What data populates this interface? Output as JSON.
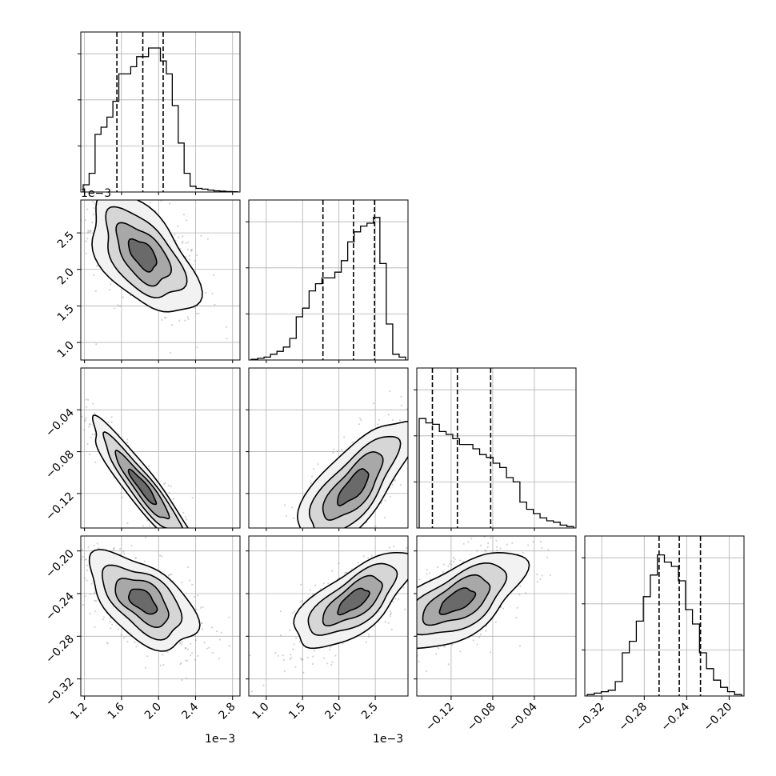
{
  "chart_data": {
    "type": "corner",
    "parameters": [
      {
        "range": [
          1.16,
          2.88
        ],
        "ticks": [
          "1.2",
          "1.6",
          "2.0",
          "2.4",
          "2.8"
        ],
        "tick_values": [
          1.2,
          1.6,
          2.0,
          2.4,
          2.8
        ],
        "offset_text": "1e−3",
        "quantiles": [
          1.55,
          1.83,
          2.05
        ]
      },
      {
        "range": [
          0.76,
          2.95
        ],
        "ticks": [
          "1.0",
          "1.5",
          "2.0",
          "2.5"
        ],
        "tick_values": [
          1.0,
          1.5,
          2.0,
          2.5
        ],
        "offset_text": "1e−3",
        "quantiles": [
          1.78,
          2.2,
          2.49
        ]
      },
      {
        "range": [
          -0.153,
          -0.0
        ],
        "ticks": [
          "−0.12",
          "−0.08",
          "−0.04"
        ],
        "tick_values": [
          -0.12,
          -0.08,
          -0.04
        ],
        "quantiles": [
          -0.138,
          -0.114,
          -0.082
        ]
      },
      {
        "range": [
          -0.336,
          -0.186
        ],
        "ticks": [
          "−0.32",
          "−0.28",
          "−0.24",
          "−0.20"
        ],
        "tick_values": [
          -0.32,
          -0.28,
          -0.24,
          -0.2
        ],
        "quantiles": [
          -0.266,
          -0.247,
          -0.227
        ]
      }
    ],
    "histograms": [
      [
        0.05,
        0.13,
        0.4,
        0.45,
        0.52,
        0.63,
        0.82,
        0.82,
        0.87,
        0.94,
        0.94,
        1.0,
        1.0,
        0.91,
        0.82,
        0.6,
        0.34,
        0.13,
        0.04,
        0.025,
        0.02,
        0.013,
        0.008,
        0.006,
        0.003,
        0.002
      ],
      [
        0.005,
        0.012,
        0.02,
        0.04,
        0.06,
        0.09,
        0.15,
        0.3,
        0.36,
        0.48,
        0.53,
        0.57,
        0.57,
        0.61,
        0.69,
        0.82,
        0.89,
        0.93,
        0.95,
        0.99,
        0.67,
        0.25,
        0.04,
        0.02
      ],
      [
        0.76,
        0.73,
        0.72,
        0.67,
        0.65,
        0.62,
        0.58,
        0.58,
        0.55,
        0.51,
        0.49,
        0.45,
        0.42,
        0.35,
        0.32,
        0.18,
        0.13,
        0.1,
        0.07,
        0.05,
        0.04,
        0.02,
        0.01
      ],
      [
        0.01,
        0.02,
        0.03,
        0.04,
        0.1,
        0.3,
        0.38,
        0.52,
        0.69,
        0.84,
        0.98,
        0.93,
        0.9,
        0.8,
        0.6,
        0.5,
        0.3,
        0.19,
        0.11,
        0.06,
        0.03,
        0.01
      ]
    ],
    "correlations": {
      "1_0": -0.55,
      "2_0": -0.93,
      "2_1": 0.75,
      "3_0": -0.55,
      "3_1": 0.7,
      "3_2": 0.62
    },
    "grid": true,
    "colors": {
      "contour": "#000000",
      "points": "#7f7f7f",
      "hist": "#000000",
      "quantile": "#000000",
      "grid": "#b0b0b0"
    }
  }
}
